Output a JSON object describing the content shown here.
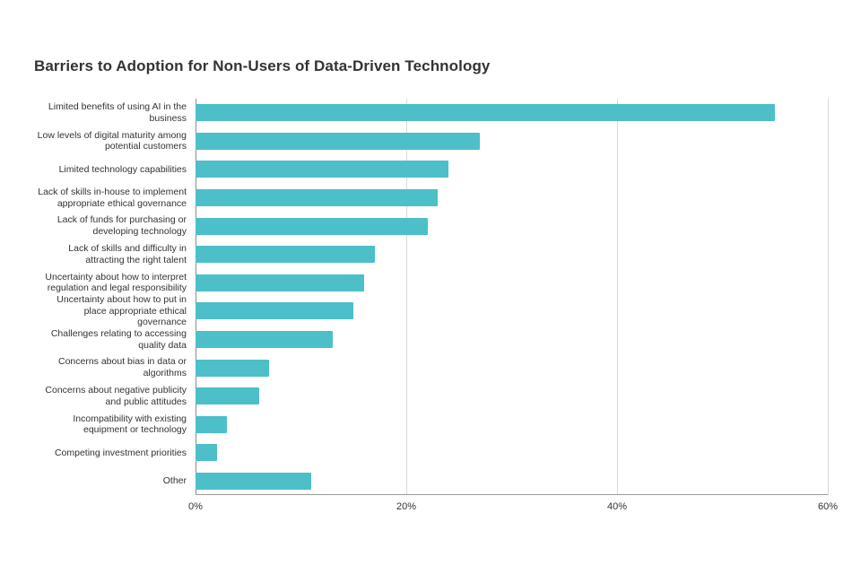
{
  "chart_data": {
    "type": "bar",
    "orientation": "horizontal",
    "title": "Barriers to Adoption for Non-Users of Data-Driven Technology",
    "categories": [
      "Limited benefits of using AI in the business",
      "Low levels of digital maturity among potential customers",
      "Limited technology capabilities",
      "Lack of skills in-house to implement appropriate ethical governance",
      "Lack of funds for purchasing or developing technology",
      "Lack of skills and difficulty in attracting the right talent",
      "Uncertainty about how to interpret regulation and legal responsibility",
      "Uncertainty about how to put in place appropriate ethical governance",
      "Challenges relating to accessing quality data",
      "Concerns about bias in data or algorithms",
      "Concerns about negative publicity and public attitudes",
      "Incompatibility with existing equipment or technology",
      "Competing investment priorities",
      "Other"
    ],
    "values": [
      55,
      27,
      24,
      23,
      22,
      17,
      16,
      15,
      13,
      7,
      6,
      3,
      2,
      11
    ],
    "x_ticks": [
      "0%",
      "20%",
      "40%",
      "60%"
    ],
    "x_tick_values": [
      0,
      20,
      40,
      60
    ],
    "xlim": [
      0,
      60
    ],
    "xlabel": "",
    "ylabel": "",
    "bar_color": "#4cbfc8",
    "grid": true,
    "legend": "none"
  }
}
